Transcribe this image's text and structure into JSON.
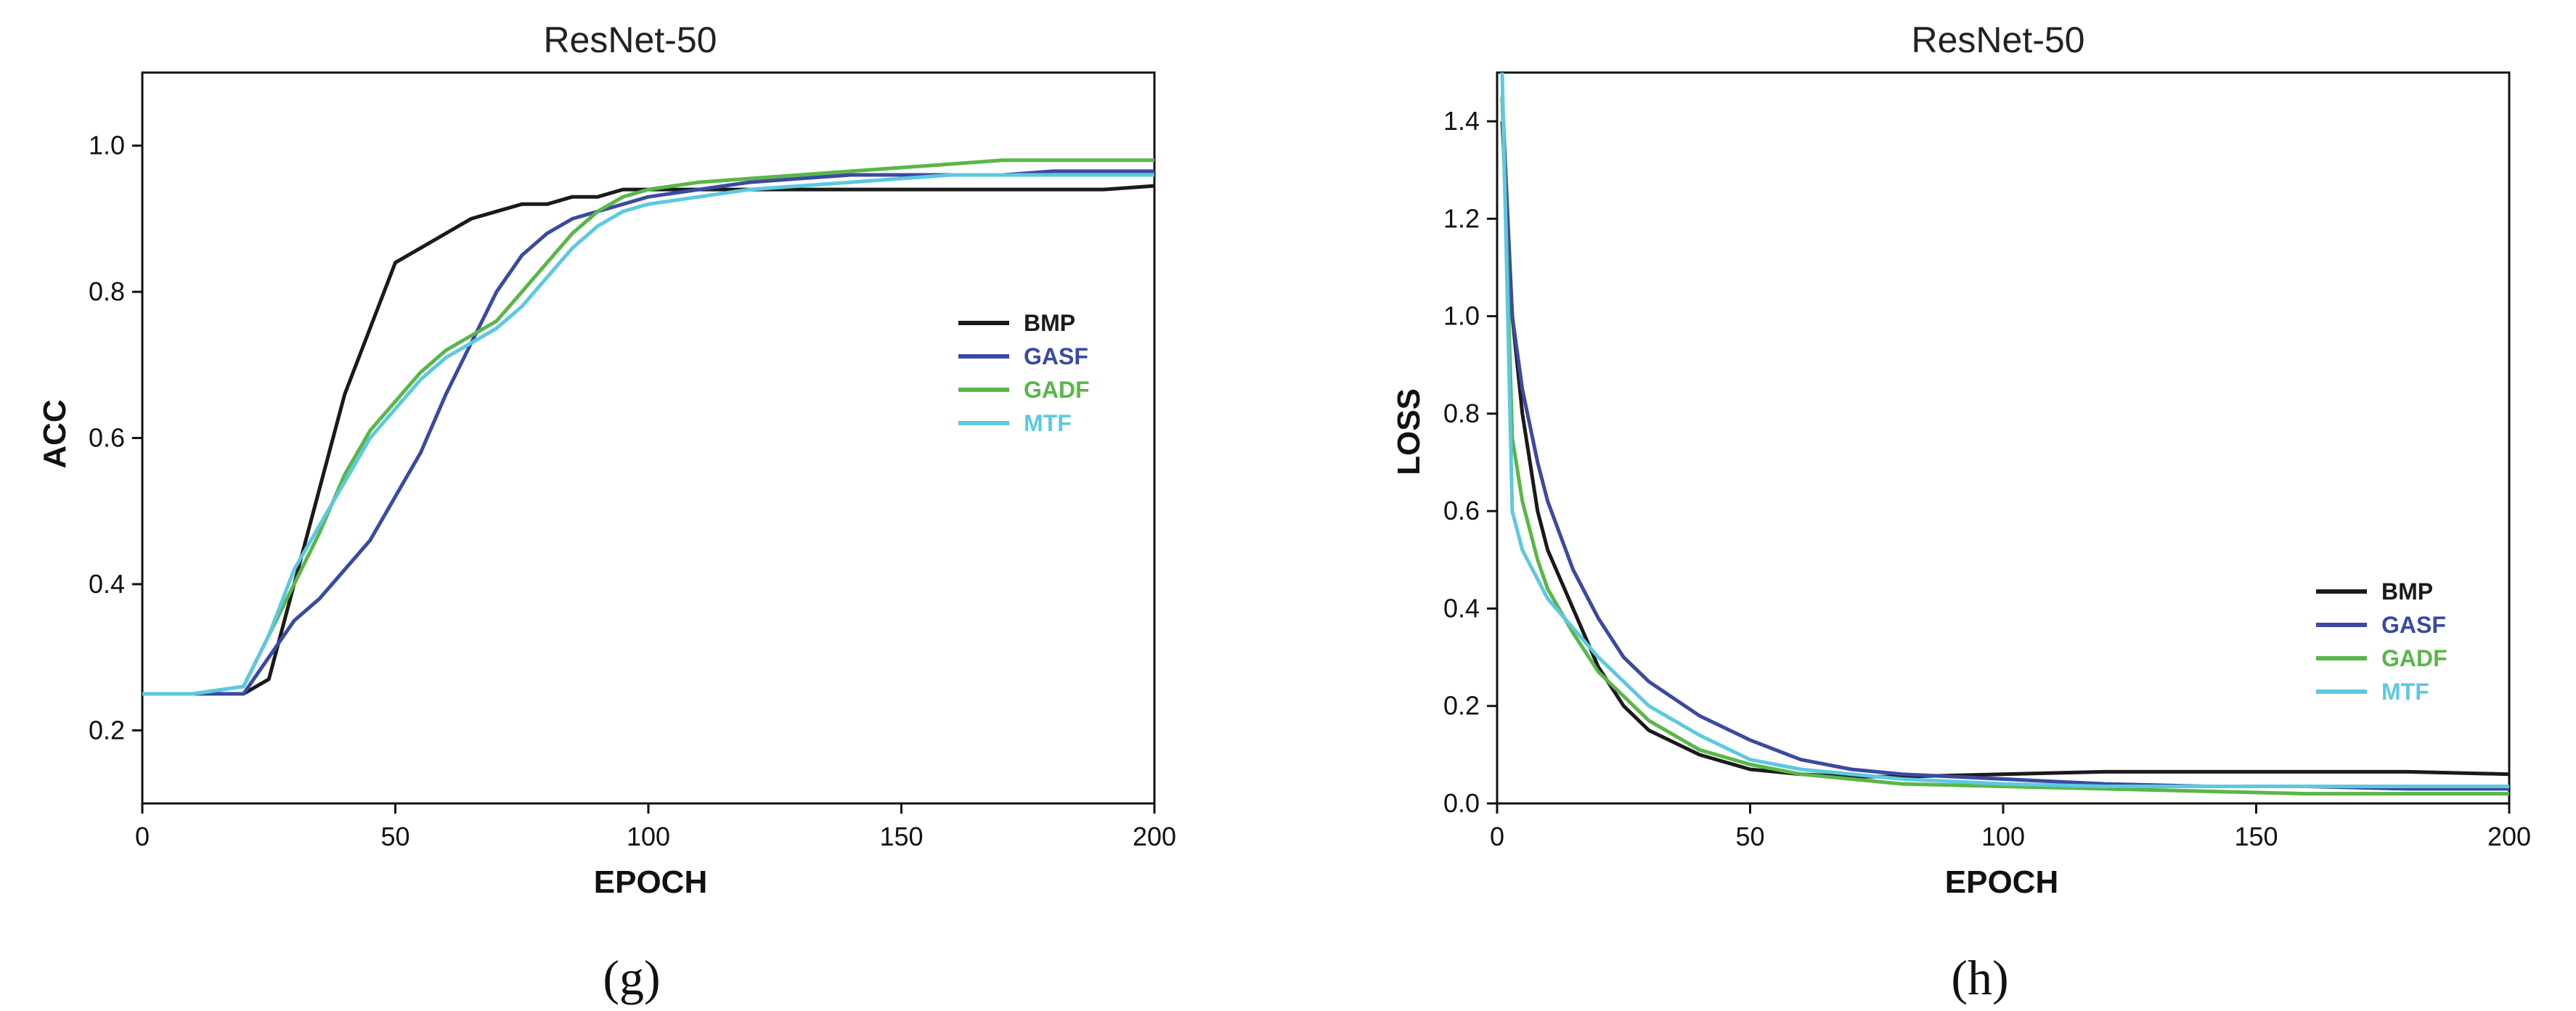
{
  "chart_data": [
    {
      "type": "line",
      "title": "ResNet-50",
      "xlabel": "EPOCH",
      "ylabel": "ACC",
      "xlim": [
        0,
        200
      ],
      "ylim": [
        0.1,
        1.1
      ],
      "xticks": [
        0,
        50,
        100,
        150,
        200
      ],
      "yticks": [
        0.2,
        0.4,
        0.6,
        0.8,
        1.0
      ],
      "xtick_labels": [
        "0",
        "50",
        "100",
        "150",
        "200"
      ],
      "ytick_labels": [
        "0.2",
        "0.4",
        "0.6",
        "0.8",
        "1.0"
      ],
      "legend_position": "right-middle",
      "caption": "(g)",
      "series": [
        {
          "name": "BMP",
          "color": "#1a1a1a",
          "x": [
            0,
            10,
            20,
            25,
            30,
            35,
            40,
            45,
            50,
            55,
            60,
            65,
            70,
            75,
            80,
            85,
            90,
            95,
            100,
            110,
            120,
            130,
            140,
            150,
            160,
            170,
            180,
            190,
            200
          ],
          "y": [
            0.25,
            0.25,
            0.25,
            0.27,
            0.4,
            0.53,
            0.66,
            0.75,
            0.84,
            0.86,
            0.88,
            0.9,
            0.91,
            0.92,
            0.92,
            0.93,
            0.93,
            0.94,
            0.94,
            0.94,
            0.94,
            0.94,
            0.94,
            0.94,
            0.94,
            0.94,
            0.94,
            0.94,
            0.945
          ]
        },
        {
          "name": "GASF",
          "color": "#3b4aa0",
          "x": [
            0,
            10,
            20,
            25,
            30,
            35,
            40,
            45,
            50,
            55,
            60,
            65,
            70,
            75,
            80,
            85,
            90,
            95,
            100,
            110,
            120,
            130,
            140,
            150,
            160,
            170,
            180,
            190,
            200
          ],
          "y": [
            0.25,
            0.25,
            0.25,
            0.3,
            0.35,
            0.38,
            0.42,
            0.46,
            0.52,
            0.58,
            0.66,
            0.73,
            0.8,
            0.85,
            0.88,
            0.9,
            0.91,
            0.92,
            0.93,
            0.94,
            0.95,
            0.955,
            0.96,
            0.96,
            0.96,
            0.96,
            0.965,
            0.965,
            0.965
          ]
        },
        {
          "name": "GADF",
          "color": "#5ab648",
          "x": [
            0,
            10,
            20,
            25,
            30,
            35,
            40,
            45,
            50,
            55,
            60,
            65,
            70,
            75,
            80,
            85,
            90,
            95,
            100,
            110,
            120,
            130,
            140,
            150,
            160,
            170,
            180,
            190,
            200
          ],
          "y": [
            0.25,
            0.25,
            0.26,
            0.33,
            0.4,
            0.47,
            0.55,
            0.61,
            0.65,
            0.69,
            0.72,
            0.74,
            0.76,
            0.8,
            0.84,
            0.88,
            0.91,
            0.93,
            0.94,
            0.95,
            0.955,
            0.96,
            0.965,
            0.97,
            0.975,
            0.98,
            0.98,
            0.98,
            0.98
          ]
        },
        {
          "name": "MTF",
          "color": "#5cc9e0",
          "x": [
            0,
            10,
            20,
            25,
            30,
            35,
            40,
            45,
            50,
            55,
            60,
            65,
            70,
            75,
            80,
            85,
            90,
            95,
            100,
            110,
            120,
            130,
            140,
            150,
            160,
            170,
            180,
            190,
            200
          ],
          "y": [
            0.25,
            0.25,
            0.26,
            0.33,
            0.42,
            0.48,
            0.54,
            0.6,
            0.64,
            0.68,
            0.71,
            0.73,
            0.75,
            0.78,
            0.82,
            0.86,
            0.89,
            0.91,
            0.92,
            0.93,
            0.94,
            0.945,
            0.95,
            0.955,
            0.96,
            0.96,
            0.96,
            0.96,
            0.96
          ]
        }
      ]
    },
    {
      "type": "line",
      "title": "ResNet-50",
      "xlabel": "EPOCH",
      "ylabel": "LOSS",
      "xlim": [
        0,
        200
      ],
      "ylim": [
        0,
        1.5
      ],
      "xticks": [
        0,
        50,
        100,
        150,
        200
      ],
      "yticks": [
        0.0,
        0.2,
        0.4,
        0.6,
        0.8,
        1.0,
        1.2,
        1.4
      ],
      "xtick_labels": [
        "0",
        "50",
        "100",
        "150",
        "200"
      ],
      "ytick_labels": [
        "0.0",
        "0.2",
        "0.4",
        "0.6",
        "0.8",
        "1.0",
        "1.2",
        "1.4"
      ],
      "legend_position": "bottom-right",
      "caption": "(h)",
      "series": [
        {
          "name": "BMP",
          "color": "#1a1a1a",
          "x": [
            1,
            3,
            5,
            8,
            10,
            15,
            20,
            25,
            30,
            40,
            50,
            60,
            70,
            80,
            100,
            120,
            140,
            160,
            180,
            200
          ],
          "y": [
            1.4,
            1.0,
            0.8,
            0.6,
            0.52,
            0.4,
            0.28,
            0.2,
            0.15,
            0.1,
            0.07,
            0.06,
            0.055,
            0.055,
            0.06,
            0.065,
            0.065,
            0.065,
            0.065,
            0.06
          ]
        },
        {
          "name": "GASF",
          "color": "#3b4aa0",
          "x": [
            1,
            3,
            5,
            8,
            10,
            15,
            20,
            25,
            30,
            40,
            50,
            60,
            70,
            80,
            100,
            120,
            140,
            160,
            180,
            200
          ],
          "y": [
            1.45,
            1.0,
            0.85,
            0.7,
            0.62,
            0.48,
            0.38,
            0.3,
            0.25,
            0.18,
            0.13,
            0.09,
            0.07,
            0.06,
            0.05,
            0.04,
            0.035,
            0.035,
            0.03,
            0.03
          ]
        },
        {
          "name": "GADF",
          "color": "#5ab648",
          "x": [
            1,
            3,
            5,
            8,
            10,
            15,
            20,
            25,
            30,
            40,
            50,
            60,
            70,
            80,
            100,
            120,
            140,
            160,
            180,
            200
          ],
          "y": [
            1.45,
            0.75,
            0.62,
            0.5,
            0.44,
            0.35,
            0.27,
            0.22,
            0.17,
            0.11,
            0.08,
            0.06,
            0.05,
            0.04,
            0.035,
            0.03,
            0.025,
            0.02,
            0.02,
            0.02
          ]
        },
        {
          "name": "MTF",
          "color": "#5cc9e0",
          "x": [
            1,
            3,
            5,
            8,
            10,
            15,
            20,
            25,
            30,
            40,
            50,
            60,
            70,
            80,
            100,
            120,
            140,
            160,
            180,
            200
          ],
          "y": [
            1.5,
            0.6,
            0.52,
            0.46,
            0.42,
            0.36,
            0.3,
            0.25,
            0.2,
            0.14,
            0.09,
            0.07,
            0.06,
            0.05,
            0.04,
            0.035,
            0.035,
            0.035,
            0.035,
            0.035
          ]
        }
      ]
    }
  ]
}
